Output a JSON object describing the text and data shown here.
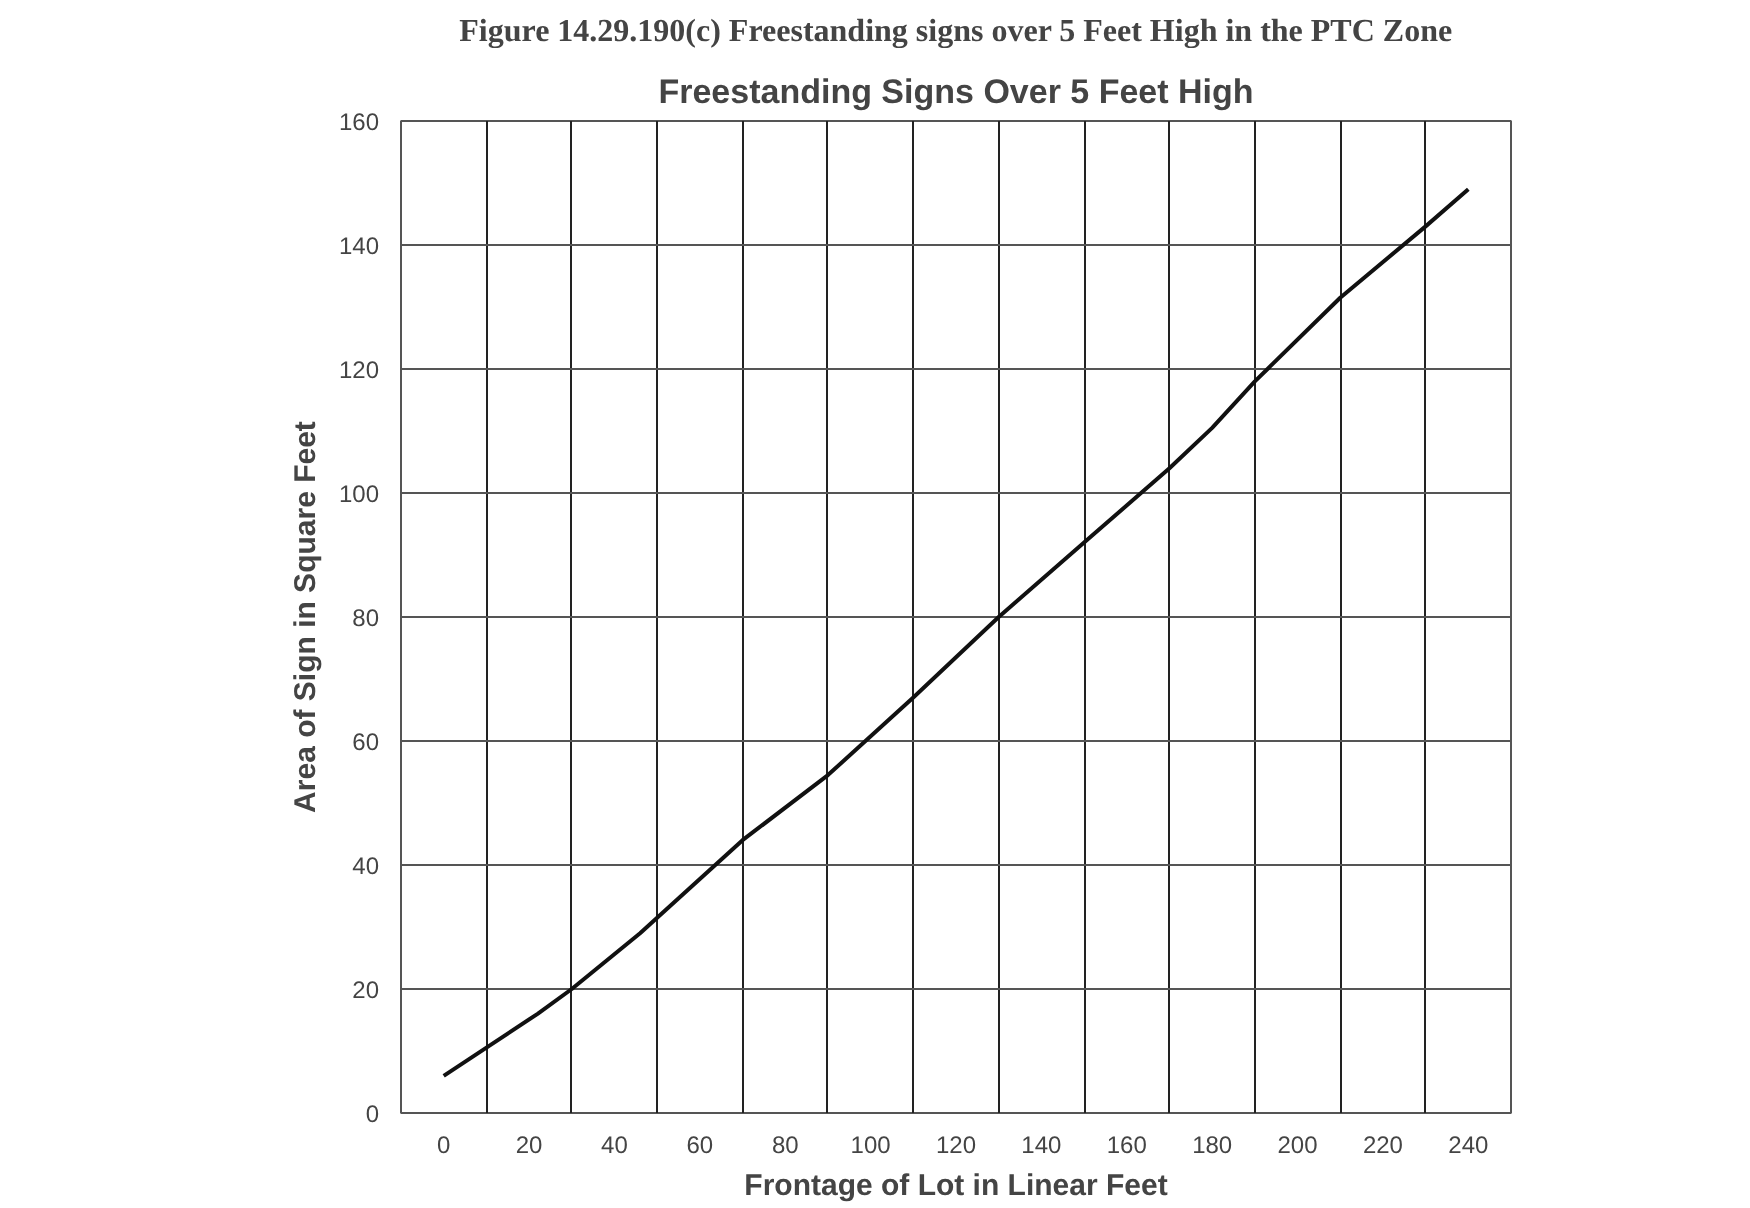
{
  "chart_data": {
    "type": "line",
    "title": "Freestanding Signs Over 5 Feet High",
    "xlabel": "Frontage of Lot in Linear Feet",
    "ylabel": "Area of Sign in Square Feet",
    "annotations": [
      "Figure 14.29.190(c) Freestanding signs over 5 Feet High in the PTC Zone"
    ],
    "x": [
      0,
      11,
      22,
      30,
      46,
      70,
      90,
      110,
      130,
      150,
      170,
      180,
      190,
      210,
      230,
      240
    ],
    "series": [
      {
        "color": "#111111",
        "values": [
          6,
          11,
          16,
          20,
          29,
          44,
          54.5,
          67,
          80,
          92,
          104,
          110.5,
          118,
          131.5,
          143,
          149
        ]
      }
    ],
    "xlim": [
      -10,
      250
    ],
    "xticks": [
      0,
      20,
      40,
      60,
      80,
      100,
      120,
      140,
      160,
      180,
      200,
      220,
      240
    ],
    "ylim": [
      0,
      160
    ],
    "yticks": [
      0,
      20,
      40,
      60,
      80,
      100,
      120,
      140,
      160
    ],
    "grid": true,
    "marker": "none",
    "line_style": "solid"
  }
}
